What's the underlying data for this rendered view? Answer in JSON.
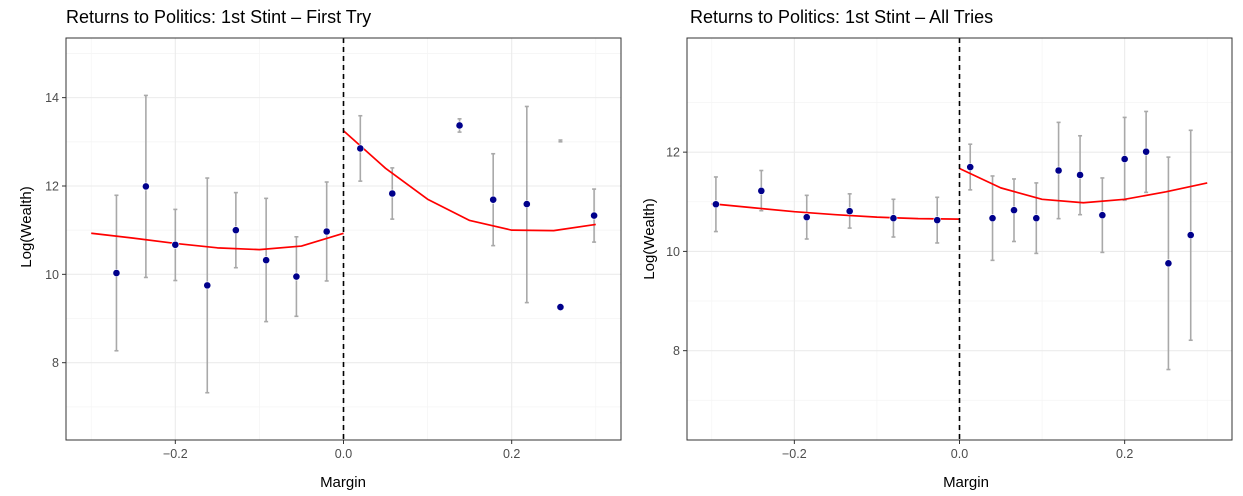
{
  "colors": {
    "point": "#00008b",
    "fit": "#ff0000",
    "errorbar": "#a9a9a9",
    "cutoff": "#000000",
    "grid_major": "#ebebeb",
    "grid_minor": "#f5f5f5",
    "panel_border": "#333333"
  },
  "chart_data": [
    {
      "type": "scatter",
      "title": "Returns to Politics: 1st Stint – First Try",
      "xlabel": "Margin",
      "ylabel": "Log(Wealth)",
      "xlim": [
        -0.33,
        0.33
      ],
      "ylim": [
        6.25,
        15.35
      ],
      "xticks": [
        -0.2,
        0.0,
        0.2
      ],
      "xtick_labels": [
        "−0.2",
        "0.0",
        "0.2"
      ],
      "yticks": [
        8,
        10,
        12,
        14
      ],
      "ytick_labels": [
        "8",
        "10",
        "12",
        "14"
      ],
      "grid": true,
      "cutoff_x": 0.0,
      "points": [
        {
          "x": -0.27,
          "y": 10.03,
          "lo": 8.27,
          "hi": 11.79
        },
        {
          "x": -0.235,
          "y": 11.99,
          "lo": 9.93,
          "hi": 14.05
        },
        {
          "x": -0.2,
          "y": 10.67,
          "lo": 9.86,
          "hi": 11.47
        },
        {
          "x": -0.162,
          "y": 9.75,
          "lo": 7.32,
          "hi": 12.18
        },
        {
          "x": -0.128,
          "y": 11.0,
          "lo": 10.15,
          "hi": 11.85
        },
        {
          "x": -0.092,
          "y": 10.32,
          "lo": 8.93,
          "hi": 11.72
        },
        {
          "x": -0.056,
          "y": 9.95,
          "lo": 9.05,
          "hi": 10.85
        },
        {
          "x": -0.02,
          "y": 10.97,
          "lo": 9.85,
          "hi": 12.09
        },
        {
          "x": 0.02,
          "y": 12.85,
          "lo": 12.11,
          "hi": 13.59
        },
        {
          "x": 0.058,
          "y": 11.83,
          "lo": 11.25,
          "hi": 12.41
        },
        {
          "x": 0.138,
          "y": 13.37,
          "lo": 13.22,
          "hi": 13.52
        },
        {
          "x": 0.178,
          "y": 11.69,
          "lo": 10.65,
          "hi": 12.73
        },
        {
          "x": 0.218,
          "y": 11.59,
          "lo": 9.36,
          "hi": 13.8
        },
        {
          "x": 0.258,
          "y": 9.26,
          "lo": 9.26,
          "hi": 9.26
        },
        {
          "x": 0.298,
          "y": 11.33,
          "lo": 10.73,
          "hi": 11.93
        }
      ],
      "extra_errorbars": [
        {
          "x": 0.258,
          "lo": 13.0,
          "hi": 13.04
        }
      ],
      "fit_left": [
        {
          "x": -0.3,
          "y": 10.93
        },
        {
          "x": -0.25,
          "y": 10.82
        },
        {
          "x": -0.2,
          "y": 10.7
        },
        {
          "x": -0.15,
          "y": 10.6
        },
        {
          "x": -0.1,
          "y": 10.56
        },
        {
          "x": -0.05,
          "y": 10.64
        },
        {
          "x": 0.0,
          "y": 10.93
        }
      ],
      "fit_right": [
        {
          "x": 0.0,
          "y": 13.25
        },
        {
          "x": 0.05,
          "y": 12.4
        },
        {
          "x": 0.1,
          "y": 11.7
        },
        {
          "x": 0.15,
          "y": 11.22
        },
        {
          "x": 0.2,
          "y": 11.0
        },
        {
          "x": 0.25,
          "y": 10.99
        },
        {
          "x": 0.3,
          "y": 11.13
        }
      ]
    },
    {
      "type": "scatter",
      "title": "Returns to Politics: 1st Stint – All Tries",
      "xlabel": "Margin",
      "ylabel": "Log(Wealth)",
      "xlim": [
        -0.33,
        0.33
      ],
      "ylim": [
        6.2,
        14.3
      ],
      "xticks": [
        -0.2,
        0.0,
        0.2
      ],
      "xtick_labels": [
        "−0.2",
        "0.0",
        "0.2"
      ],
      "yticks": [
        8,
        10,
        12
      ],
      "ytick_labels": [
        "8",
        "10",
        "12"
      ],
      "grid": true,
      "cutoff_x": 0.0,
      "points": [
        {
          "x": -0.295,
          "y": 10.95,
          "lo": 10.4,
          "hi": 11.5
        },
        {
          "x": -0.24,
          "y": 11.22,
          "lo": 10.82,
          "hi": 11.63
        },
        {
          "x": -0.185,
          "y": 10.69,
          "lo": 10.25,
          "hi": 11.13
        },
        {
          "x": -0.133,
          "y": 10.81,
          "lo": 10.47,
          "hi": 11.16
        },
        {
          "x": -0.08,
          "y": 10.67,
          "lo": 10.29,
          "hi": 11.05
        },
        {
          "x": -0.027,
          "y": 10.63,
          "lo": 10.17,
          "hi": 11.09
        },
        {
          "x": 0.013,
          "y": 11.7,
          "lo": 11.24,
          "hi": 12.16
        },
        {
          "x": 0.04,
          "y": 10.67,
          "lo": 9.82,
          "hi": 11.52
        },
        {
          "x": 0.066,
          "y": 10.83,
          "lo": 10.2,
          "hi": 11.46
        },
        {
          "x": 0.093,
          "y": 10.67,
          "lo": 9.96,
          "hi": 11.38
        },
        {
          "x": 0.12,
          "y": 11.63,
          "lo": 10.66,
          "hi": 12.6
        },
        {
          "x": 0.146,
          "y": 11.54,
          "lo": 10.74,
          "hi": 12.33
        },
        {
          "x": 0.173,
          "y": 10.73,
          "lo": 9.98,
          "hi": 11.48
        },
        {
          "x": 0.2,
          "y": 11.86,
          "lo": 11.03,
          "hi": 12.7
        },
        {
          "x": 0.226,
          "y": 12.01,
          "lo": 11.19,
          "hi": 12.82
        },
        {
          "x": 0.253,
          "y": 9.76,
          "lo": 7.62,
          "hi": 11.9
        },
        {
          "x": 0.28,
          "y": 10.33,
          "lo": 8.21,
          "hi": 12.44
        }
      ],
      "extra_errorbars": [],
      "fit_left": [
        {
          "x": -0.3,
          "y": 10.96
        },
        {
          "x": -0.25,
          "y": 10.88
        },
        {
          "x": -0.2,
          "y": 10.8
        },
        {
          "x": -0.15,
          "y": 10.74
        },
        {
          "x": -0.1,
          "y": 10.69
        },
        {
          "x": -0.05,
          "y": 10.66
        },
        {
          "x": 0.0,
          "y": 10.65
        }
      ],
      "fit_right": [
        {
          "x": 0.0,
          "y": 11.67
        },
        {
          "x": 0.05,
          "y": 11.28
        },
        {
          "x": 0.1,
          "y": 11.05
        },
        {
          "x": 0.15,
          "y": 10.98
        },
        {
          "x": 0.2,
          "y": 11.05
        },
        {
          "x": 0.25,
          "y": 11.2
        },
        {
          "x": 0.3,
          "y": 11.38
        }
      ]
    }
  ]
}
